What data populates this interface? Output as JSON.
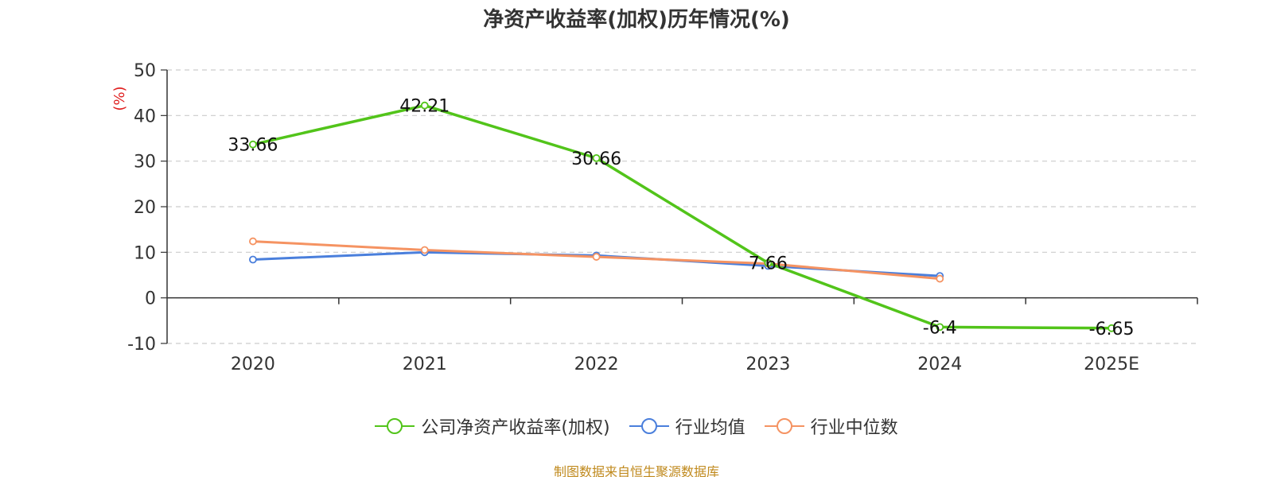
{
  "title": "净资产收益率(加权)历年情况(%)",
  "source_text": "制图数据来自恒生聚源数据库",
  "colors": {
    "company": "#52c41a",
    "avg": "#4a7fdc",
    "median": "#f59362",
    "ylabel": "#e02020",
    "source": "#c08a1e",
    "grid": "#cccccc",
    "axis": "#333333"
  },
  "chart_data": {
    "type": "line",
    "title": "净资产收益率(加权)历年情况(%)",
    "xlabel": "",
    "ylabel": "(%)",
    "categories": [
      "2020",
      "2021",
      "2022",
      "2023",
      "2024",
      "2025E"
    ],
    "ylim": [
      -10,
      50
    ],
    "yticks": [
      50,
      40,
      30,
      20,
      10,
      0,
      -10
    ],
    "grid": true,
    "legend_position": "bottom",
    "series": [
      {
        "key": "company",
        "name": "公司净资产收益率(加权)",
        "values": [
          33.66,
          42.21,
          30.66,
          7.66,
          -6.4,
          -6.65
        ],
        "labels": [
          "33.66",
          "42.21",
          "30.66",
          "7.66",
          "-6.4",
          "-6.65"
        ]
      },
      {
        "key": "avg",
        "name": "行业均值",
        "values": [
          8.4,
          10.0,
          9.3,
          7.0,
          4.8,
          null
        ]
      },
      {
        "key": "median",
        "name": "行业中位数",
        "values": [
          12.4,
          10.5,
          9.0,
          7.5,
          4.2,
          null
        ]
      }
    ]
  }
}
